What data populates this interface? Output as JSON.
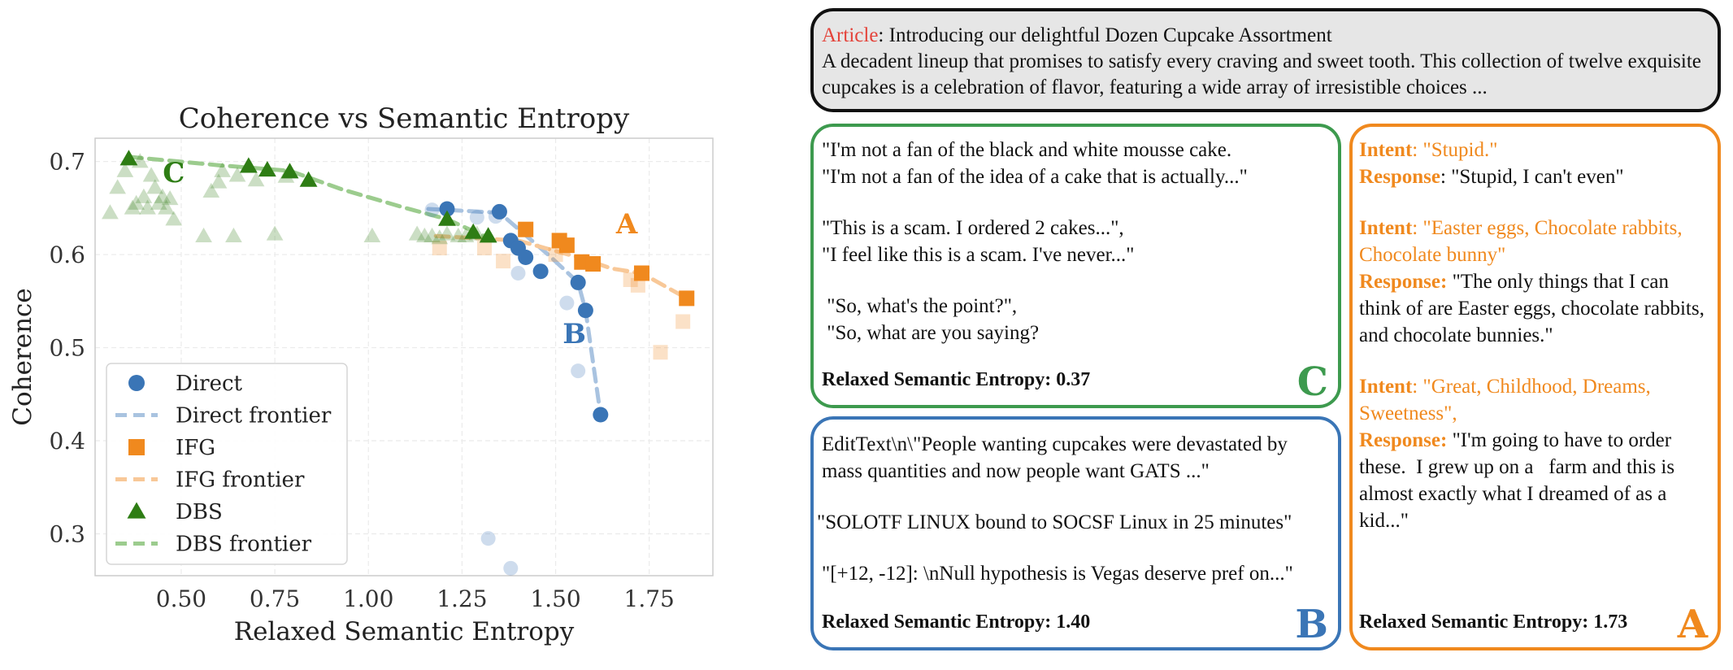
{
  "chart_data": {
    "type": "scatter",
    "title": "Coherence vs Semantic Entropy",
    "xlabel": "Relaxed Semantic Entropy",
    "ylabel": "Coherence",
    "xlim": [
      0.27,
      1.92
    ],
    "ylim": [
      0.255,
      0.725
    ],
    "xticks": [
      0.5,
      0.75,
      1.0,
      1.25,
      1.5,
      1.75
    ],
    "xtick_labels": [
      "0.50",
      "0.75",
      "1.00",
      "1.25",
      "1.50",
      "1.75"
    ],
    "yticks": [
      0.3,
      0.4,
      0.5,
      0.6,
      0.7
    ],
    "ytick_labels": [
      "0.3",
      "0.4",
      "0.5",
      "0.6",
      "0.7"
    ],
    "grid": true,
    "legend_position": "lower-left",
    "legend": [
      "Direct",
      "Direct frontier",
      "IFG",
      "IFG frontier",
      "DBS",
      "DBS frontier"
    ],
    "series": [
      {
        "name": "Direct",
        "marker": "circle",
        "color": "#3a75b6",
        "points": [
          [
            1.21,
            0.649
          ],
          [
            1.35,
            0.646
          ],
          [
            1.38,
            0.615
          ],
          [
            1.4,
            0.607
          ],
          [
            1.42,
            0.597
          ],
          [
            1.46,
            0.582
          ],
          [
            1.56,
            0.57
          ],
          [
            1.58,
            0.54
          ],
          [
            1.62,
            0.428
          ]
        ],
        "faded_points": [
          [
            1.17,
            0.648
          ],
          [
            1.29,
            0.64
          ],
          [
            1.34,
            0.641
          ],
          [
            1.4,
            0.58
          ],
          [
            1.53,
            0.548
          ],
          [
            1.56,
            0.475
          ],
          [
            1.32,
            0.295
          ],
          [
            1.38,
            0.263
          ]
        ]
      },
      {
        "name": "Direct frontier",
        "style": "dashed",
        "color": "#a9c3e0",
        "points": [
          [
            1.16,
            0.649
          ],
          [
            1.35,
            0.645
          ],
          [
            1.48,
            0.6
          ],
          [
            1.56,
            0.57
          ],
          [
            1.58,
            0.54
          ],
          [
            1.62,
            0.428
          ]
        ]
      },
      {
        "name": "IFG",
        "marker": "square",
        "color": "#f0891e",
        "points": [
          [
            1.42,
            0.627
          ],
          [
            1.51,
            0.615
          ],
          [
            1.53,
            0.61
          ],
          [
            1.57,
            0.592
          ],
          [
            1.6,
            0.59
          ],
          [
            1.73,
            0.58
          ],
          [
            1.85,
            0.553
          ]
        ],
        "faded_points": [
          [
            1.19,
            0.607
          ],
          [
            1.31,
            0.607
          ],
          [
            1.36,
            0.593
          ],
          [
            1.5,
            0.6
          ],
          [
            1.7,
            0.573
          ],
          [
            1.72,
            0.567
          ],
          [
            1.78,
            0.495
          ],
          [
            1.84,
            0.528
          ]
        ]
      },
      {
        "name": "IFG frontier",
        "style": "dashed",
        "color": "#f8c898",
        "points": [
          [
            1.18,
            0.62
          ],
          [
            1.4,
            0.615
          ],
          [
            1.57,
            0.596
          ],
          [
            1.65,
            0.585
          ],
          [
            1.73,
            0.58
          ],
          [
            1.85,
            0.553
          ]
        ]
      },
      {
        "name": "DBS",
        "marker": "triangle",
        "color": "#2e7d14",
        "points": [
          [
            0.36,
            0.703
          ],
          [
            0.68,
            0.695
          ],
          [
            0.73,
            0.691
          ],
          [
            0.79,
            0.689
          ],
          [
            0.84,
            0.68
          ],
          [
            1.21,
            0.638
          ],
          [
            1.28,
            0.624
          ],
          [
            1.32,
            0.62
          ]
        ],
        "faded_points": [
          [
            0.31,
            0.645
          ],
          [
            0.33,
            0.672
          ],
          [
            0.35,
            0.69
          ],
          [
            0.37,
            0.65
          ],
          [
            0.38,
            0.655
          ],
          [
            0.39,
            0.7
          ],
          [
            0.4,
            0.662
          ],
          [
            0.41,
            0.65
          ],
          [
            0.42,
            0.685
          ],
          [
            0.43,
            0.672
          ],
          [
            0.44,
            0.655
          ],
          [
            0.45,
            0.662
          ],
          [
            0.46,
            0.65
          ],
          [
            0.47,
            0.66
          ],
          [
            0.48,
            0.638
          ],
          [
            0.56,
            0.62
          ],
          [
            0.58,
            0.668
          ],
          [
            0.6,
            0.678
          ],
          [
            0.61,
            0.69
          ],
          [
            0.64,
            0.62
          ],
          [
            0.65,
            0.685
          ],
          [
            0.7,
            0.68
          ],
          [
            0.75,
            0.622
          ],
          [
            0.78,
            0.684
          ],
          [
            1.01,
            0.62
          ],
          [
            1.13,
            0.622
          ],
          [
            1.15,
            0.62
          ],
          [
            1.17,
            0.62
          ],
          [
            1.19,
            0.618
          ],
          [
            1.21,
            0.622
          ],
          [
            1.24,
            0.62
          ],
          [
            1.26,
            0.62
          ],
          [
            1.29,
            0.622
          ]
        ]
      },
      {
        "name": "DBS frontier",
        "style": "dashed",
        "color": "#9ccc8e",
        "points": [
          [
            0.36,
            0.705
          ],
          [
            0.6,
            0.696
          ],
          [
            0.79,
            0.69
          ],
          [
            0.93,
            0.67
          ],
          [
            1.1,
            0.65
          ],
          [
            1.21,
            0.638
          ],
          [
            1.32,
            0.618
          ]
        ]
      }
    ],
    "annotations": [
      {
        "text": "C",
        "x": 0.48,
        "y": 0.678,
        "color": "#2e7d14"
      },
      {
        "text": "B",
        "x": 1.55,
        "y": 0.505,
        "color": "#3a75b6"
      },
      {
        "text": "A",
        "x": 1.69,
        "y": 0.623,
        "color": "#f0891e"
      }
    ]
  },
  "article": {
    "label": "Article",
    "title": ": Introducing our delightful Dozen Cupcake Assortment",
    "body": "A decadent lineup that promises to satisfy every craving and sweet tooth. This collection of twelve exquisite cupcakes is a celebration of flavor, featuring a wide array of irresistible choices ..."
  },
  "panel_c": {
    "samples": [
      "\"I'm not a fan of the black and white mousse cake.\n\"I'm not a fan of the idea of a cake that is actually...\"",
      "\"This is a scam. I ordered 2 cakes...\",\n\"I feel like this is a scam. I've never...\"",
      " \"So, what's the point?\",\n \"So, what are you saying?"
    ],
    "entropy_label": "Relaxed Semantic Entropy: 0.37",
    "letter": "C"
  },
  "panel_b": {
    "samples": [
      "EditText\\n\\\"People wanting cupcakes were devastated by mass quantities and now people want GATS ...\"",
      "\"SOLOTF LINUX bound to SOCSF Linux in 25 minutes\"",
      "\"[+12, -12]: \\nNull hypothesis is Vegas deserve pref on...\""
    ],
    "entropy_label": "Relaxed Semantic Entropy: 1.40",
    "letter": "B"
  },
  "panel_a": {
    "items": [
      {
        "intent_label": "Intent",
        "intent": ": \"Stupid.\"",
        "response_label": "Response",
        "response": ": \"Stupid, I can't even\""
      },
      {
        "intent_label": "Intent",
        "intent": ": \"Easter eggs, Chocolate rabbits, Chocolate bunny\"",
        "response_label": "Response:",
        "response": " \"The only things that I can think of are Easter eggs, chocolate rabbits, and chocolate bunnies.\""
      },
      {
        "intent_label": "Intent",
        "intent": ": \"Great, Childhood, Dreams, Sweetness\",",
        "response_label": "Response:",
        "response": " \"I'm going to have to order these.  I grew up on a   farm and this is almost exactly what I dreamed of as a kid...\""
      }
    ],
    "entropy_label": "Relaxed Semantic Entropy: 1.73",
    "letter": "A"
  }
}
